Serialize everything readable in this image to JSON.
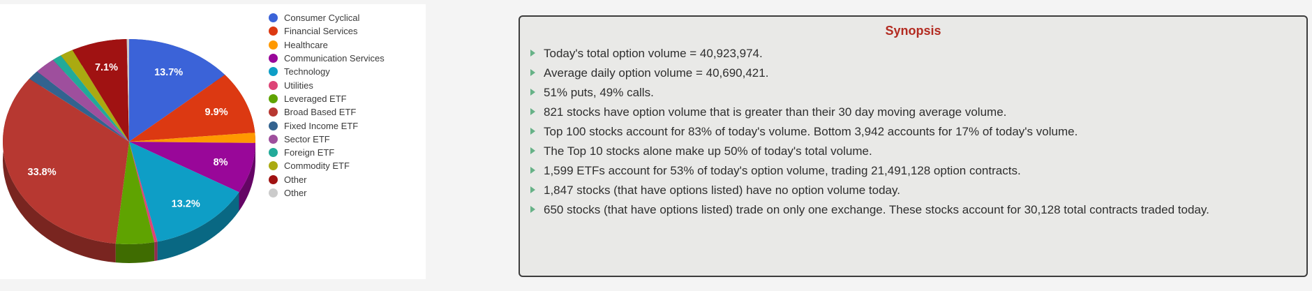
{
  "page": {
    "background": "#f4f4f4"
  },
  "chart_data": {
    "type": "pie",
    "three_d": true,
    "start_angle": "12-oclock-clockwise",
    "legend_position": "right",
    "label_color": "#ffffff",
    "slices": [
      {
        "label": "Consumer Cyclical",
        "value": 13.7,
        "display": "13.7%",
        "color": "#3b63d8"
      },
      {
        "label": "Financial Services",
        "value": 9.9,
        "display": "9.9%",
        "color": "#dc3912"
      },
      {
        "label": "Healthcare",
        "value": 1.6,
        "display": "",
        "color": "#ff9900"
      },
      {
        "label": "Communication Services",
        "value": 8.0,
        "display": "8%",
        "color": "#990799"
      },
      {
        "label": "Technology",
        "value": 13.2,
        "display": "13.2%",
        "color": "#0e9ec6"
      },
      {
        "label": "Utilities",
        "value": 0.4,
        "display": "",
        "color": "#dd4477"
      },
      {
        "label": "Leveraged ETF",
        "value": 4.9,
        "display": "",
        "color": "#5fa301"
      },
      {
        "label": "Broad Based ETF",
        "value": 33.8,
        "display": "33.8%",
        "color": "#b73831"
      },
      {
        "label": "Fixed Income ETF",
        "value": 1.5,
        "display": "",
        "color": "#33638f"
      },
      {
        "label": "Sector ETF",
        "value": 2.7,
        "display": "",
        "color": "#9e4f9d"
      },
      {
        "label": "Foreign ETF",
        "value": 1.2,
        "display": "",
        "color": "#22aa99"
      },
      {
        "label": "Commodity ETF",
        "value": 1.7,
        "display": "",
        "color": "#aaaa11"
      },
      {
        "label": "Other",
        "value": 7.1,
        "display": "7.1%",
        "color": "#a01212"
      },
      {
        "label": "Other",
        "value": 0.3,
        "display": "",
        "color": "#cbcbcb"
      }
    ]
  },
  "synopsis": {
    "title": "Synopsis",
    "title_color": "#b32b21",
    "bullet_marker_color": "#67b287",
    "bullets": [
      "Today's total option volume = 40,923,974.",
      "Average daily option volume = 40,690,421.",
      "51% puts, 49% calls.",
      "821 stocks have option volume that is greater than their 30 day moving average volume.",
      "Top 100 stocks account for 83% of today's volume. Bottom 3,942 accounts for 17% of today's volume.",
      "The Top 10 stocks alone make up 50% of today's total volume.",
      "1,599 ETFs account for 53% of today's option volume, trading 21,491,128 option contracts.",
      "1,847 stocks (that have options listed) have no option volume today.",
      "650 stocks (that have options listed) trade on only one exchange. These stocks account for 30,128 total contracts traded today."
    ]
  }
}
